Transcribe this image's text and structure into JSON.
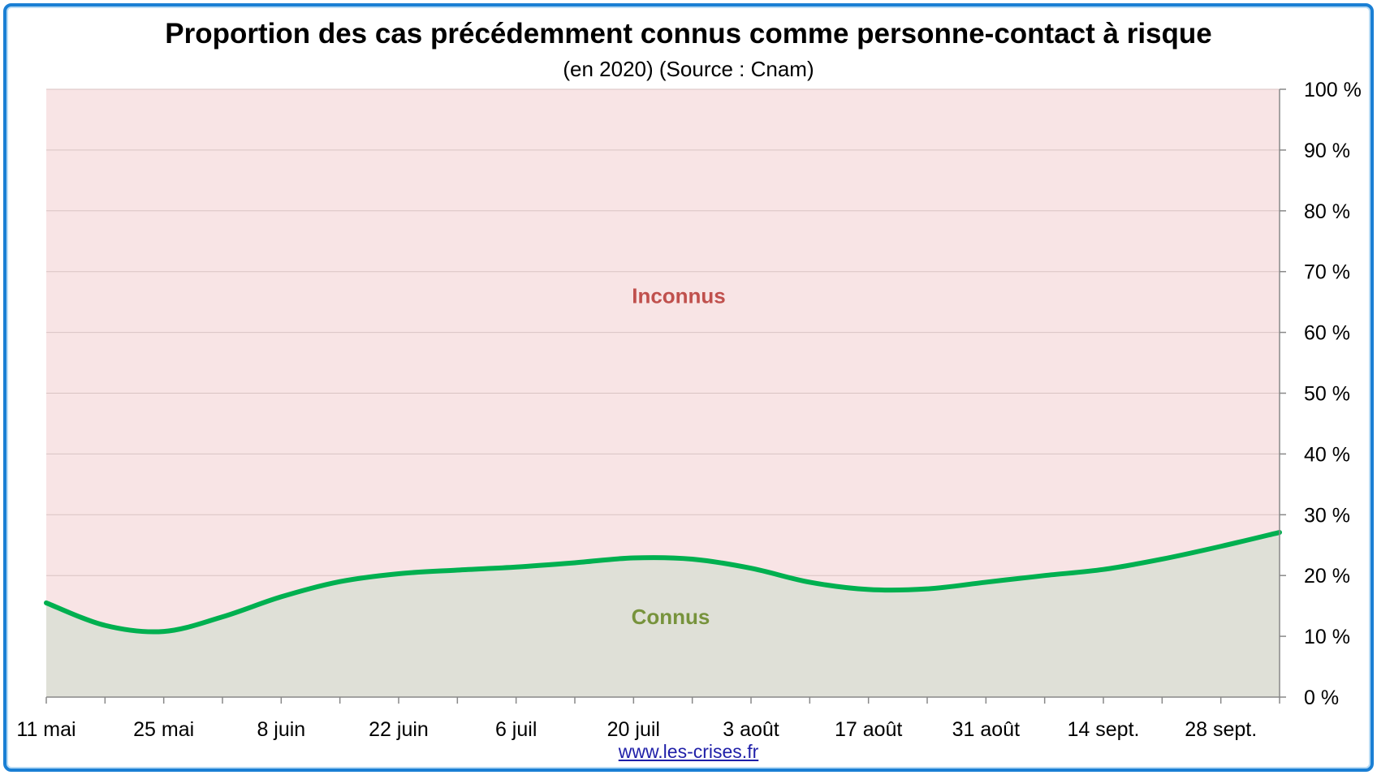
{
  "title": "Proportion des cas précédemment connus comme personne-contact à risque",
  "subtitle": "(en 2020) (Source : Cnam)",
  "footer": {
    "link": "www.les-crises.fr"
  },
  "colors": {
    "frame": "#1a7fd4",
    "unknown_fill": "#f8e4e5",
    "known_fill": "#dfe0d7",
    "line": "#00b050",
    "unknown_label": "#c0504d",
    "known_label": "#77933c",
    "grid": "#d9c3c3"
  },
  "chart_data": {
    "type": "area",
    "x_tick_labels": [
      "11 mai",
      "25 mai",
      "8 juin",
      "22 juin",
      "6 juil",
      "20 juil",
      "3 août",
      "17 août",
      "31 août",
      "14 sept.",
      "28 sept."
    ],
    "y_tick_labels": [
      "0 %",
      "10 %",
      "20 %",
      "30 %",
      "40 %",
      "50 %",
      "60 %",
      "70 %",
      "80 %",
      "90 %",
      "100 %"
    ],
    "ylim": [
      0,
      100
    ],
    "y_axis_position": "right",
    "grid": true,
    "x": [
      "11 mai",
      "18 mai",
      "25 mai",
      "1 juin",
      "8 juin",
      "15 juin",
      "22 juin",
      "29 juin",
      "6 juil",
      "13 juil",
      "20 juil",
      "27 juil",
      "3 août",
      "10 août",
      "17 août",
      "24 août",
      "31 août",
      "7 sept.",
      "14 sept.",
      "21 sept.",
      "28 sept.",
      "5 oct."
    ],
    "series": [
      {
        "name": "Connus",
        "values": [
          15.5,
          11.8,
          10.8,
          13.2,
          16.5,
          19.0,
          20.3,
          20.9,
          21.4,
          22.1,
          22.9,
          22.7,
          21.2,
          18.9,
          17.7,
          17.8,
          18.9,
          20.0,
          21.0,
          22.7,
          24.8,
          27.1
        ]
      }
    ],
    "labels": {
      "upper_area": "Inconnus",
      "lower_area": "Connus"
    }
  }
}
